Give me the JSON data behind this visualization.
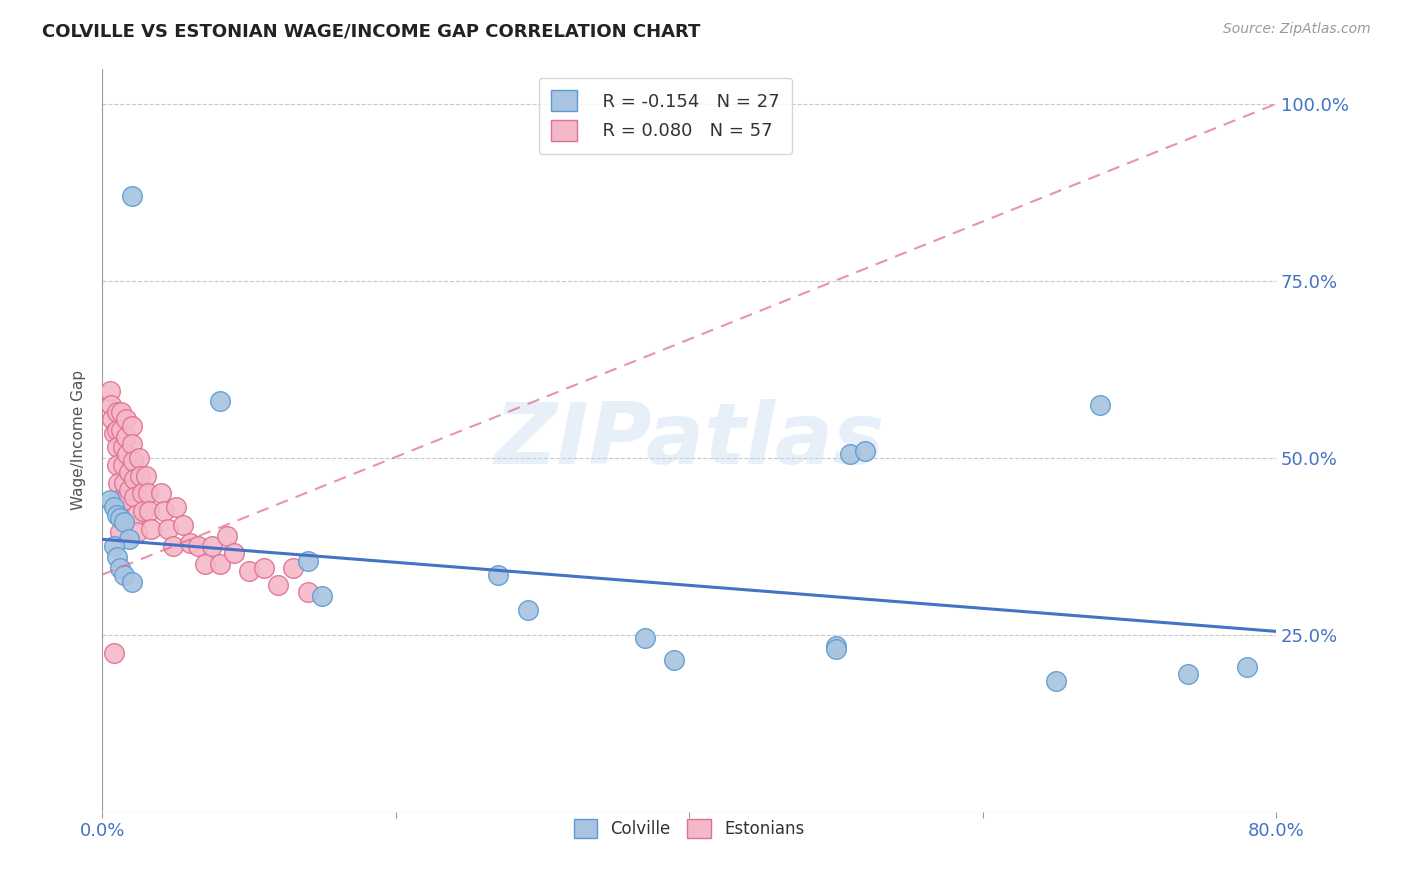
{
  "title": "COLVILLE VS ESTONIAN WAGE/INCOME GAP CORRELATION CHART",
  "source": "Source: ZipAtlas.com",
  "ylabel": "Wage/Income Gap",
  "xmin": 0.0,
  "xmax": 0.8,
  "ymin": 0.0,
  "ymax": 1.05,
  "yticks": [
    0.25,
    0.5,
    0.75,
    1.0
  ],
  "ytick_labels": [
    "25.0%",
    "50.0%",
    "75.0%",
    "100.0%"
  ],
  "colville_color": "#a8c4e0",
  "estonian_color": "#f4b8c8",
  "colville_edge": "#5b9bd5",
  "estonian_edge": "#e07090",
  "trend_colville_color": "#4472c4",
  "trend_estonian_color": "#e07090",
  "colville_R": -0.154,
  "colville_N": 27,
  "estonian_R": 0.08,
  "estonian_N": 57,
  "watermark": "ZIPatlas",
  "colville_x": [
    0.02,
    0.08,
    0.005,
    0.008,
    0.01,
    0.012,
    0.015,
    0.018,
    0.008,
    0.01,
    0.012,
    0.015,
    0.02,
    0.14,
    0.15,
    0.27,
    0.29,
    0.37,
    0.39,
    0.5,
    0.51,
    0.5,
    0.52,
    0.65,
    0.68,
    0.74,
    0.78
  ],
  "colville_y": [
    0.87,
    0.58,
    0.44,
    0.43,
    0.42,
    0.415,
    0.41,
    0.385,
    0.375,
    0.36,
    0.345,
    0.335,
    0.325,
    0.355,
    0.305,
    0.335,
    0.285,
    0.245,
    0.215,
    0.235,
    0.505,
    0.23,
    0.51,
    0.185,
    0.575,
    0.195,
    0.205
  ],
  "estonian_x": [
    0.005,
    0.006,
    0.007,
    0.008,
    0.008,
    0.01,
    0.01,
    0.01,
    0.01,
    0.011,
    0.011,
    0.012,
    0.012,
    0.013,
    0.013,
    0.014,
    0.014,
    0.015,
    0.015,
    0.016,
    0.016,
    0.017,
    0.018,
    0.018,
    0.02,
    0.02,
    0.021,
    0.022,
    0.022,
    0.023,
    0.024,
    0.025,
    0.026,
    0.027,
    0.028,
    0.03,
    0.031,
    0.032,
    0.033,
    0.04,
    0.042,
    0.045,
    0.048,
    0.05,
    0.055,
    0.06,
    0.065,
    0.07,
    0.075,
    0.08,
    0.085,
    0.09,
    0.1,
    0.11,
    0.12,
    0.13,
    0.14
  ],
  "estonian_y": [
    0.595,
    0.575,
    0.555,
    0.535,
    0.225,
    0.565,
    0.54,
    0.515,
    0.49,
    0.465,
    0.44,
    0.42,
    0.395,
    0.565,
    0.54,
    0.515,
    0.49,
    0.465,
    0.44,
    0.555,
    0.53,
    0.505,
    0.48,
    0.455,
    0.545,
    0.52,
    0.495,
    0.47,
    0.445,
    0.42,
    0.395,
    0.5,
    0.475,
    0.45,
    0.425,
    0.475,
    0.45,
    0.425,
    0.4,
    0.45,
    0.425,
    0.4,
    0.375,
    0.43,
    0.405,
    0.38,
    0.375,
    0.35,
    0.375,
    0.35,
    0.39,
    0.365,
    0.34,
    0.345,
    0.32,
    0.345,
    0.31
  ],
  "background_color": "#ffffff",
  "grid_color": "#c8c8c8"
}
